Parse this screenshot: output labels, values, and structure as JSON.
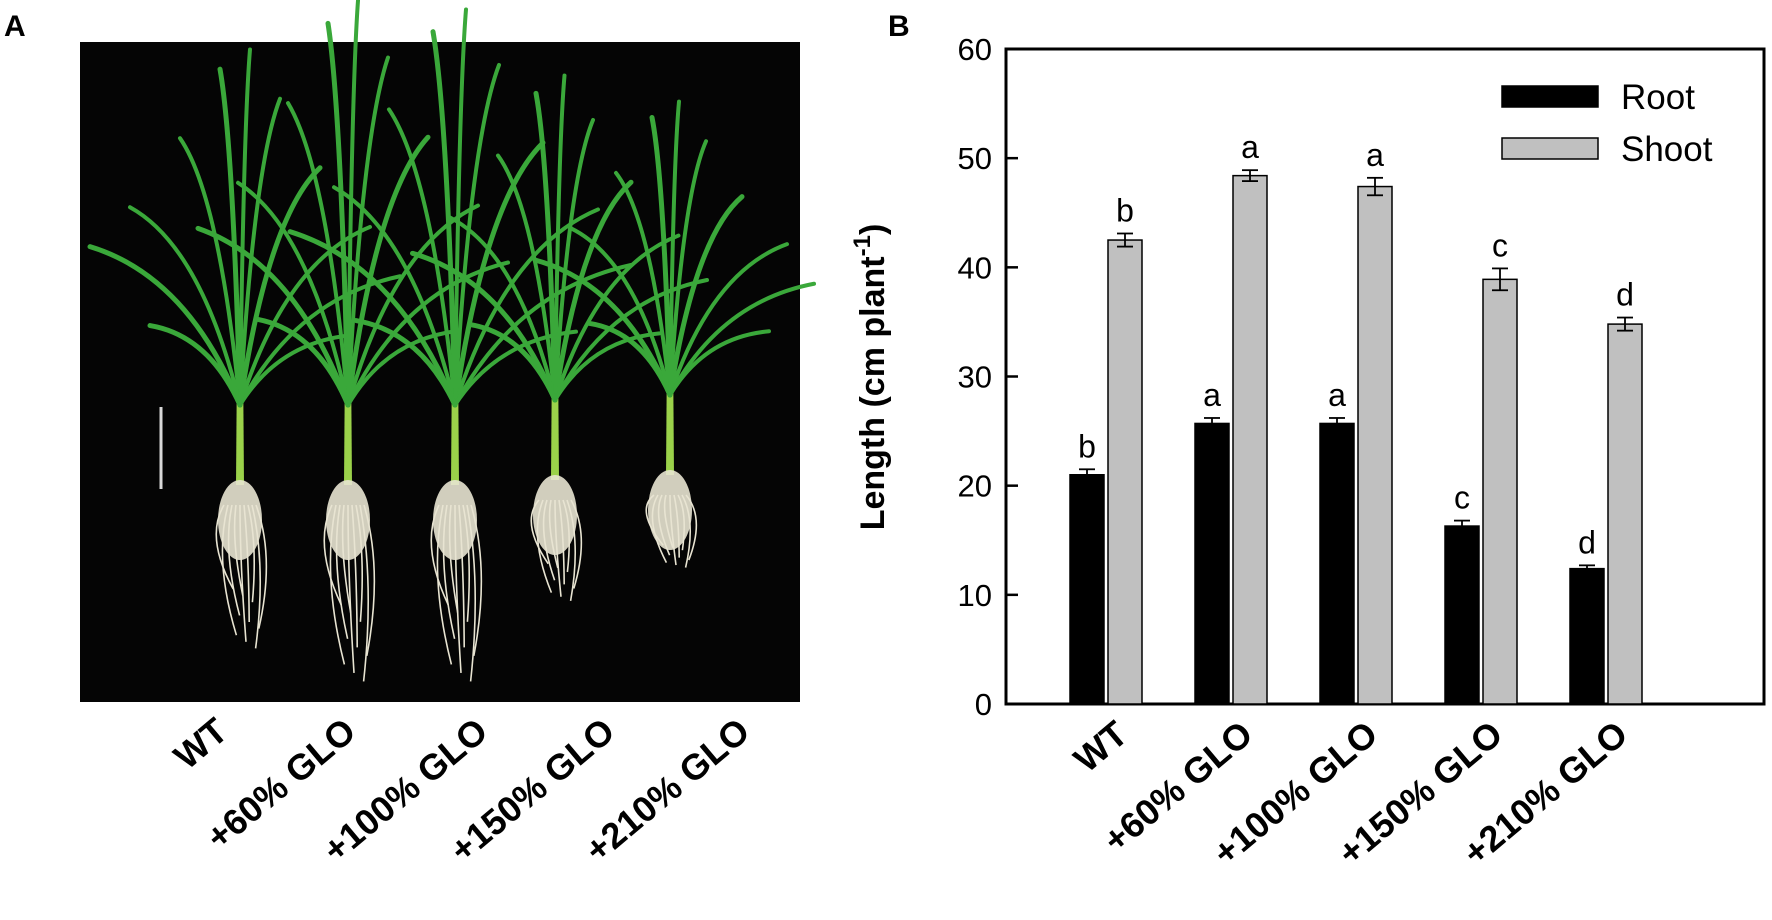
{
  "panel_a": {
    "letter": "A",
    "photo_description_labels": [
      "WT",
      "+60% GLO",
      "+100% GLO",
      "+150% GLO",
      "+210% GLO"
    ]
  },
  "panel_b": {
    "letter": "B"
  },
  "colors": {
    "root": "#000000",
    "shoot": "#c0c0c0",
    "photo_background": "#050505",
    "leaf": "#3aa83a",
    "root_hair": "#e8e4d2"
  },
  "chart_data": {
    "type": "bar",
    "categories": [
      "WT",
      "+60% GLO",
      "+100% GLO",
      "+150% GLO",
      "+210% GLO"
    ],
    "series": [
      {
        "name": "Root",
        "values": [
          21.0,
          25.7,
          25.7,
          16.3,
          12.4
        ],
        "errors": [
          0.5,
          0.5,
          0.5,
          0.5,
          0.3
        ],
        "significance": [
          "b",
          "a",
          "a",
          "c",
          "d"
        ]
      },
      {
        "name": "Shoot",
        "values": [
          42.5,
          48.4,
          47.4,
          38.9,
          34.8
        ],
        "errors": [
          0.6,
          0.5,
          0.8,
          1.0,
          0.6
        ],
        "significance": [
          "b",
          "a",
          "a",
          "c",
          "d"
        ]
      }
    ],
    "ylabel_main": "Length (cm plant",
    "ylabel_sup": "-1",
    "ylabel_close": ")",
    "ylim": [
      0,
      60
    ],
    "yticks": [
      0,
      10,
      20,
      30,
      40,
      50,
      60
    ],
    "grid": false,
    "legend_position": "top-right"
  }
}
